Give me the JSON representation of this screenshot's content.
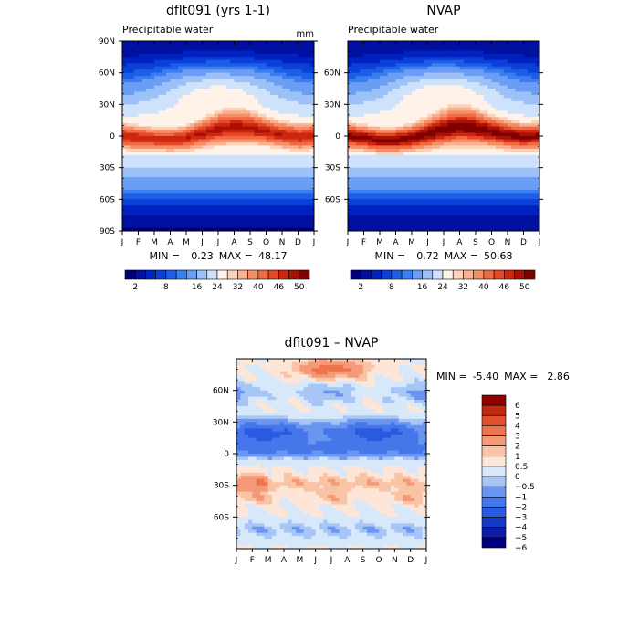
{
  "figure": {
    "panel_a": {
      "title": "dflt091 (yrs 1-1)",
      "subtitle": "Precipitable water",
      "units": "mm",
      "min": "0.23",
      "max": "48.17"
    },
    "panel_b": {
      "title": "NVAP",
      "subtitle": "Precipitable water",
      "min": "0.72",
      "max": "50.68"
    },
    "panel_c": {
      "title": "dflt091 – NVAP",
      "min": "-5.40",
      "max": "2.86"
    },
    "min_label": "MIN =",
    "max_label": "MAX ="
  },
  "chart_data": [
    {
      "type": "heatmap",
      "title": "dflt091 (yrs 1-1)",
      "subtitle": "Precipitable water",
      "units": "mm",
      "x": [
        "J",
        "F",
        "M",
        "A",
        "M",
        "J",
        "J",
        "A",
        "S",
        "O",
        "N",
        "D",
        "J"
      ],
      "y_ticks": [
        "90N",
        "60N",
        "30N",
        "0",
        "30S",
        "60S",
        "90S"
      ],
      "ylim": [
        -90,
        90
      ],
      "min": 0.23,
      "max": 48.17,
      "colorbar_labels": [
        "2",
        "8",
        "16",
        "24",
        "32",
        "40",
        "46",
        "50"
      ],
      "colorbar_levels": [
        2,
        4,
        6,
        8,
        10,
        12,
        16,
        20,
        24,
        28,
        32,
        36,
        40,
        44,
        46,
        48,
        50
      ],
      "colors": [
        "#00007f",
        "#0010a0",
        "#0022c0",
        "#0a3fd8",
        "#1e5ee6",
        "#3a7ef0",
        "#6a9ef4",
        "#9cc0f8",
        "#cfe2fc",
        "#fff2e8",
        "#fdd2b8",
        "#fbb090",
        "#f68e68",
        "#f06a44",
        "#e54824",
        "#cc2810",
        "#a81008",
        "#800000"
      ],
      "model": {
        "eq_peak": 48,
        "eq_center": [
          0,
          -2,
          -3,
          -4,
          -2,
          2,
          6,
          8,
          7,
          4,
          1,
          -1,
          0
        ],
        "width": [
          14,
          13,
          12,
          12,
          13,
          15,
          17,
          18,
          17,
          15,
          14,
          14,
          14
        ],
        "nh_arch": 22,
        "nh_pole": 2,
        "sh_pole": 1
      }
    },
    {
      "type": "heatmap",
      "title": "NVAP",
      "subtitle": "Precipitable water",
      "x": [
        "J",
        "F",
        "M",
        "A",
        "M",
        "J",
        "J",
        "A",
        "S",
        "O",
        "N",
        "D",
        "J"
      ],
      "y_ticks": [
        "60N",
        "30N",
        "0",
        "30S",
        "60S"
      ],
      "ylim": [
        -90,
        90
      ],
      "min": 0.72,
      "max": 50.68,
      "colorbar_labels": [
        "2",
        "8",
        "16",
        "24",
        "32",
        "40",
        "46",
        "50"
      ],
      "colorbar_levels": [
        2,
        4,
        6,
        8,
        10,
        12,
        16,
        20,
        24,
        28,
        32,
        36,
        40,
        44,
        46,
        48,
        50
      ],
      "colors": [
        "#00007f",
        "#0010a0",
        "#0022c0",
        "#0a3fd8",
        "#1e5ee6",
        "#3a7ef0",
        "#6a9ef4",
        "#9cc0f8",
        "#cfe2fc",
        "#fff2e8",
        "#fdd2b8",
        "#fbb090",
        "#f68e68",
        "#f06a44",
        "#e54824",
        "#cc2810",
        "#a81008",
        "#800000"
      ],
      "model": {
        "eq_peak": 50.5,
        "eq_center": [
          0,
          -2,
          -4,
          -4,
          -2,
          2,
          6,
          8,
          7,
          4,
          1,
          -1,
          0
        ],
        "width": [
          14,
          13,
          13,
          13,
          14,
          16,
          18,
          19,
          18,
          16,
          15,
          14,
          14
        ],
        "nh_arch": 24,
        "nh_pole": 3,
        "sh_pole": 2
      }
    },
    {
      "type": "heatmap",
      "title": "dflt091 – NVAP",
      "x": [
        "J",
        "F",
        "M",
        "A",
        "M",
        "J",
        "J",
        "A",
        "S",
        "O",
        "N",
        "D",
        "J"
      ],
      "y_ticks": [
        "60N",
        "30N",
        "0",
        "30S",
        "60S"
      ],
      "ylim": [
        -90,
        90
      ],
      "min": -5.4,
      "max": 2.86,
      "colorbar_labels": [
        "6",
        "5",
        "4",
        "3",
        "2",
        "1",
        "0.5",
        "0",
        "−0.5",
        "−1",
        "−2",
        "−3",
        "−4",
        "−5",
        "−6"
      ],
      "colorbar_levels": [
        -6,
        -5,
        -4,
        -3,
        -2,
        -1,
        -0.5,
        0,
        0.5,
        1,
        2,
        3,
        4,
        5,
        6
      ],
      "colors": [
        "#00007f",
        "#0a1ea8",
        "#1438c8",
        "#2a5ae0",
        "#4677ea",
        "#6a95f0",
        "#a7c6f6",
        "#d8e8fb",
        "#fde6d8",
        "#f9c4a6",
        "#f59a78",
        "#ee7450",
        "#e0502e",
        "#c0280f",
        "#900000"
      ]
    }
  ]
}
